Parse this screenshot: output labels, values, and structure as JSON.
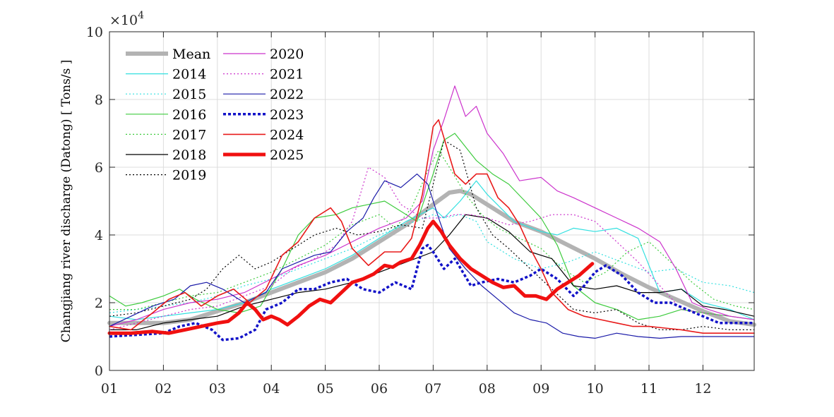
{
  "chart_data": {
    "type": "line",
    "title": "",
    "xlabel": "",
    "ylabel": "Changjiang river discharge (Datong) [ Tons/s ]",
    "y_scale_label": "×10",
    "y_scale_exponent": "4",
    "xlim": [
      1,
      12.95
    ],
    "ylim": [
      0,
      10
    ],
    "x_ticks": [
      1,
      2,
      3,
      4,
      5,
      6,
      7,
      8,
      9,
      10,
      11,
      12
    ],
    "x_tick_labels": [
      "01",
      "02",
      "03",
      "04",
      "05",
      "06",
      "07",
      "08",
      "09",
      "10",
      "11",
      "12"
    ],
    "y_ticks": [
      0,
      2,
      4,
      6,
      8,
      10
    ],
    "y_tick_labels": [
      "0",
      "2",
      "4",
      "6",
      "8",
      "10"
    ],
    "grid": true,
    "legend_position": "top-left",
    "series": [
      {
        "name": "Mean",
        "color": "#b3b3b3",
        "width": 6,
        "dash": "solid",
        "x": [
          1,
          1.5,
          2,
          2.5,
          3,
          3.5,
          4,
          4.5,
          5,
          5.5,
          6,
          6.5,
          7,
          7.3,
          7.5,
          7.7,
          8,
          8.5,
          9,
          9.5,
          10,
          10.5,
          11,
          11.5,
          12,
          12.5,
          12.95
        ],
        "y": [
          1.4,
          1.4,
          1.4,
          1.5,
          1.75,
          2.0,
          2.3,
          2.6,
          2.9,
          3.3,
          3.8,
          4.3,
          4.9,
          5.25,
          5.3,
          5.2,
          4.9,
          4.4,
          4.1,
          3.7,
          3.3,
          2.85,
          2.45,
          2.1,
          1.75,
          1.45,
          1.35
        ]
      },
      {
        "name": "2014",
        "color": "#33e0e0",
        "width": 1.2,
        "dash": "solid",
        "x": [
          1,
          1.5,
          2,
          2.5,
          3,
          3.5,
          4,
          4.5,
          5,
          5.5,
          6,
          6.5,
          7,
          7.2,
          7.5,
          7.8,
          8,
          8.5,
          9,
          9.3,
          9.6,
          10,
          10.4,
          10.8,
          11.2,
          11.6,
          12,
          12.5,
          12.95
        ],
        "y": [
          1.6,
          1.5,
          1.6,
          1.7,
          1.8,
          2.0,
          2.4,
          2.7,
          3.0,
          3.4,
          3.9,
          4.4,
          4.8,
          4.5,
          5.0,
          5.6,
          5.2,
          4.4,
          4.1,
          4.0,
          4.2,
          4.1,
          4.2,
          3.9,
          2.3,
          2.4,
          2.0,
          1.8,
          1.5
        ]
      },
      {
        "name": "2015",
        "color": "#33e0e0",
        "width": 1.2,
        "dash": "2,3",
        "x": [
          1,
          1.5,
          2,
          2.5,
          3,
          3.5,
          4,
          4.5,
          5,
          5.5,
          6,
          6.5,
          7,
          7.2,
          7.5,
          7.8,
          8,
          8.5,
          9,
          9.5,
          10,
          10.5,
          11,
          11.5,
          12,
          12.5,
          12.95
        ],
        "y": [
          1.7,
          1.8,
          1.9,
          2.0,
          2.2,
          2.5,
          2.7,
          3.0,
          3.3,
          3.6,
          4.0,
          4.3,
          4.6,
          4.5,
          4.6,
          4.4,
          3.8,
          3.3,
          3.0,
          3.2,
          3.5,
          3.2,
          2.9,
          3.0,
          2.6,
          2.5,
          2.3
        ]
      },
      {
        "name": "2016",
        "color": "#3ecb3e",
        "width": 1.2,
        "dash": "solid",
        "x": [
          1,
          1.3,
          1.6,
          2,
          2.3,
          2.6,
          3,
          3.4,
          3.8,
          4.2,
          4.5,
          4.8,
          5.2,
          5.5,
          5.8,
          6.1,
          6.4,
          6.7,
          7.0,
          7.2,
          7.4,
          7.6,
          7.8,
          8.1,
          8.4,
          8.7,
          9.0,
          9.3,
          9.6,
          10.0,
          10.4,
          10.8,
          11.2,
          11.6,
          12,
          12.5,
          12.95
        ],
        "y": [
          2.2,
          1.9,
          2.0,
          2.2,
          2.4,
          2.1,
          1.8,
          1.7,
          1.9,
          3.0,
          4.0,
          4.5,
          4.6,
          4.8,
          4.9,
          5.0,
          4.7,
          4.4,
          5.8,
          6.8,
          7.0,
          6.6,
          6.2,
          5.8,
          5.5,
          5.0,
          4.5,
          3.7,
          2.5,
          2.0,
          1.8,
          1.5,
          1.6,
          1.8,
          1.7,
          1.6,
          1.5
        ]
      },
      {
        "name": "2017",
        "color": "#3ecb3e",
        "width": 1.2,
        "dash": "2,3",
        "x": [
          1,
          1.5,
          2,
          2.5,
          3,
          3.5,
          4,
          4.5,
          5,
          5.5,
          6,
          6.3,
          6.6,
          6.9,
          7.1,
          7.3,
          7.6,
          7.9,
          8.2,
          8.6,
          9,
          9.4,
          9.8,
          10.2,
          10.6,
          11,
          11.4,
          11.8,
          12.2,
          12.6,
          12.95
        ],
        "y": [
          1.8,
          1.8,
          2.0,
          2.2,
          2.3,
          2.6,
          2.9,
          3.3,
          3.7,
          4.3,
          4.6,
          4.2,
          4.8,
          5.9,
          6.5,
          6.0,
          5.2,
          4.6,
          4.2,
          3.9,
          3.6,
          3.0,
          2.6,
          2.9,
          3.5,
          3.8,
          3.2,
          2.6,
          2.1,
          1.9,
          1.8
        ]
      },
      {
        "name": "2018",
        "color": "#000000",
        "width": 1.2,
        "dash": "solid",
        "x": [
          1,
          1.5,
          2,
          2.5,
          3,
          3.5,
          4,
          4.5,
          5,
          5.5,
          6,
          6.5,
          7,
          7.3,
          7.6,
          8.0,
          8.4,
          8.8,
          9.2,
          9.6,
          10,
          10.4,
          10.8,
          11.2,
          11.6,
          12,
          12.4,
          12.95
        ],
        "y": [
          1.2,
          1.2,
          1.4,
          1.5,
          1.6,
          1.9,
          2.1,
          2.3,
          2.4,
          2.6,
          2.9,
          3.2,
          3.5,
          4.0,
          4.6,
          4.5,
          4.1,
          3.5,
          3.3,
          2.5,
          2.4,
          2.5,
          2.3,
          2.3,
          2.4,
          1.9,
          1.8,
          1.6
        ]
      },
      {
        "name": "2019",
        "color": "#000000",
        "width": 1.2,
        "dash": "2,3",
        "x": [
          1,
          1.5,
          2,
          2.5,
          2.8,
          3.1,
          3.4,
          3.7,
          4,
          4.4,
          4.8,
          5.2,
          5.6,
          6,
          6.4,
          6.8,
          7.0,
          7.2,
          7.5,
          7.8,
          8.1,
          8.4,
          8.8,
          9.2,
          9.6,
          10,
          10.4,
          10.8,
          11.2,
          11.6,
          12,
          12.5,
          12.95
        ],
        "y": [
          1.6,
          1.7,
          1.9,
          2.1,
          2.4,
          3.0,
          3.4,
          3.0,
          3.2,
          3.6,
          4.0,
          4.2,
          4.0,
          4.1,
          4.3,
          4.2,
          5.5,
          6.8,
          6.5,
          4.8,
          4.0,
          3.6,
          3.0,
          2.4,
          1.8,
          1.7,
          1.8,
          1.4,
          1.2,
          1.2,
          1.3,
          1.2,
          1.2
        ]
      },
      {
        "name": "2020",
        "color": "#cc33cc",
        "width": 1.2,
        "dash": "solid",
        "x": [
          1,
          1.5,
          2,
          2.5,
          3,
          3.5,
          4,
          4.5,
          5,
          5.5,
          6,
          6.5,
          6.8,
          7.0,
          7.2,
          7.4,
          7.6,
          7.8,
          8.0,
          8.3,
          8.6,
          9.0,
          9.3,
          9.6,
          10,
          10.4,
          10.8,
          11.2,
          11.5,
          11.8,
          12.1,
          12.5,
          12.95
        ],
        "y": [
          1.3,
          1.5,
          1.8,
          2.0,
          2.1,
          2.3,
          2.7,
          3.1,
          3.4,
          3.8,
          4.2,
          4.5,
          5.0,
          6.5,
          7.4,
          8.4,
          7.5,
          7.8,
          7.0,
          6.4,
          5.6,
          5.7,
          5.3,
          5.1,
          4.8,
          4.5,
          4.2,
          3.8,
          3.0,
          2.0,
          1.8,
          1.6,
          1.5
        ]
      },
      {
        "name": "2021",
        "color": "#cc33cc",
        "width": 1.2,
        "dash": "2,3",
        "x": [
          1,
          1.5,
          2,
          2.5,
          3,
          3.5,
          4,
          4.4,
          4.8,
          5.2,
          5.5,
          5.8,
          6.1,
          6.4,
          6.8,
          7.1,
          7.4,
          7.7,
          8.0,
          8.4,
          8.8,
          9.2,
          9.6,
          10.0,
          10.4,
          10.8,
          11.2,
          11.6,
          12,
          12.5,
          12.95
        ],
        "y": [
          1.2,
          1.4,
          1.6,
          1.8,
          1.9,
          2.2,
          2.5,
          3.0,
          3.3,
          3.7,
          4.4,
          6.0,
          5.7,
          4.9,
          4.5,
          4.5,
          4.6,
          4.6,
          4.5,
          4.3,
          4.4,
          4.6,
          4.6,
          4.4,
          3.8,
          3.2,
          2.5,
          1.8,
          1.7,
          1.6,
          1.5
        ]
      },
      {
        "name": "2022",
        "color": "#1a1aa8",
        "width": 1.2,
        "dash": "solid",
        "x": [
          1,
          1.4,
          1.8,
          2.2,
          2.5,
          2.8,
          3.1,
          3.5,
          3.9,
          4.2,
          4.5,
          4.8,
          5.1,
          5.4,
          5.7,
          5.9,
          6.1,
          6.4,
          6.7,
          6.9,
          7.1,
          7.3,
          7.6,
          7.9,
          8.2,
          8.5,
          8.8,
          9.1,
          9.4,
          9.7,
          10.0,
          10.4,
          10.8,
          11.2,
          11.6,
          12,
          12.5,
          12.95
        ],
        "y": [
          1.3,
          1.6,
          1.9,
          2.1,
          2.5,
          2.6,
          2.4,
          2.0,
          2.3,
          3.0,
          3.2,
          3.4,
          3.5,
          4.1,
          4.5,
          5.1,
          5.6,
          5.4,
          5.8,
          5.5,
          4.5,
          3.6,
          3.0,
          2.5,
          2.1,
          1.7,
          1.5,
          1.4,
          1.1,
          1.0,
          0.95,
          1.1,
          1.0,
          0.95,
          1.0,
          1.0,
          1.0,
          1.0
        ]
      },
      {
        "name": "2023",
        "color": "#1212c8",
        "width": 3.5,
        "dash": "4,3",
        "x": [
          1,
          1.5,
          2,
          2.3,
          2.6,
          2.9,
          3.1,
          3.4,
          3.7,
          3.9,
          4.2,
          4.5,
          4.8,
          5.1,
          5.4,
          5.7,
          6.0,
          6.3,
          6.6,
          6.8,
          6.9,
          7.0,
          7.2,
          7.4,
          7.7,
          7.9,
          8.2,
          8.5,
          8.8,
          9.0,
          9.3,
          9.6,
          9.8,
          10.0,
          10.2,
          10.5,
          10.8,
          11.1,
          11.4,
          11.7,
          12.0,
          12.3,
          12.6,
          12.95
        ],
        "y": [
          1.0,
          1.05,
          1.1,
          1.3,
          1.4,
          1.2,
          0.9,
          0.95,
          1.2,
          1.8,
          2.0,
          2.4,
          2.4,
          2.6,
          2.7,
          2.4,
          2.3,
          2.6,
          2.4,
          3.6,
          3.7,
          3.5,
          3.0,
          3.3,
          2.5,
          2.6,
          2.7,
          2.6,
          2.8,
          3.0,
          2.7,
          2.2,
          2.5,
          2.9,
          3.1,
          2.8,
          2.3,
          2.0,
          2.0,
          1.8,
          1.6,
          1.4,
          1.4,
          1.4
        ]
      },
      {
        "name": "2024",
        "color": "#e81a1a",
        "width": 1.6,
        "dash": "solid",
        "x": [
          1,
          1.4,
          1.8,
          2.1,
          2.4,
          2.7,
          3.0,
          3.3,
          3.6,
          3.9,
          4.2,
          4.5,
          4.8,
          5.1,
          5.3,
          5.5,
          5.8,
          6.1,
          6.4,
          6.6,
          6.8,
          7.0,
          7.1,
          7.25,
          7.4,
          7.6,
          7.8,
          8.0,
          8.2,
          8.4,
          8.6,
          8.8,
          9.0,
          9.2,
          9.5,
          9.8,
          10.1,
          10.4,
          10.7,
          11.0,
          11.3,
          11.6,
          12.0,
          12.5,
          12.95
        ],
        "y": [
          1.3,
          1.2,
          1.7,
          2.1,
          2.3,
          1.9,
          2.2,
          2.4,
          2.0,
          2.4,
          3.4,
          3.8,
          4.5,
          4.8,
          4.4,
          3.6,
          3.1,
          3.5,
          3.5,
          3.9,
          5.2,
          7.2,
          7.4,
          6.6,
          5.8,
          5.5,
          5.8,
          5.8,
          5.1,
          4.8,
          4.3,
          3.6,
          3.0,
          2.3,
          1.8,
          1.6,
          1.5,
          1.4,
          1.3,
          1.3,
          1.25,
          1.2,
          1.1,
          1.1,
          1.1
        ]
      },
      {
        "name": "2025",
        "color": "#f01010",
        "width": 5,
        "dash": "solid",
        "x": [
          1,
          1.4,
          1.8,
          2.1,
          2.4,
          2.7,
          3.0,
          3.2,
          3.4,
          3.55,
          3.7,
          3.85,
          4.0,
          4.15,
          4.3,
          4.5,
          4.7,
          4.9,
          5.1,
          5.3,
          5.5,
          5.7,
          5.9,
          6.1,
          6.25,
          6.4,
          6.6,
          6.75,
          6.9,
          7.0,
          7.15,
          7.3,
          7.5,
          7.7,
          7.9,
          8.1,
          8.3,
          8.5,
          8.7,
          8.9,
          9.1,
          9.3,
          9.5,
          9.7,
          9.95
        ],
        "y": [
          1.1,
          1.1,
          1.15,
          1.1,
          1.2,
          1.3,
          1.4,
          1.45,
          1.7,
          2.0,
          1.8,
          1.5,
          1.6,
          1.5,
          1.35,
          1.6,
          1.9,
          2.1,
          2.0,
          2.3,
          2.6,
          2.7,
          2.85,
          3.1,
          3.05,
          3.2,
          3.3,
          3.7,
          4.2,
          4.4,
          4.1,
          3.7,
          3.3,
          3.0,
          2.8,
          2.6,
          2.45,
          2.5,
          2.2,
          2.2,
          2.1,
          2.4,
          2.6,
          2.8,
          3.15
        ]
      }
    ]
  }
}
